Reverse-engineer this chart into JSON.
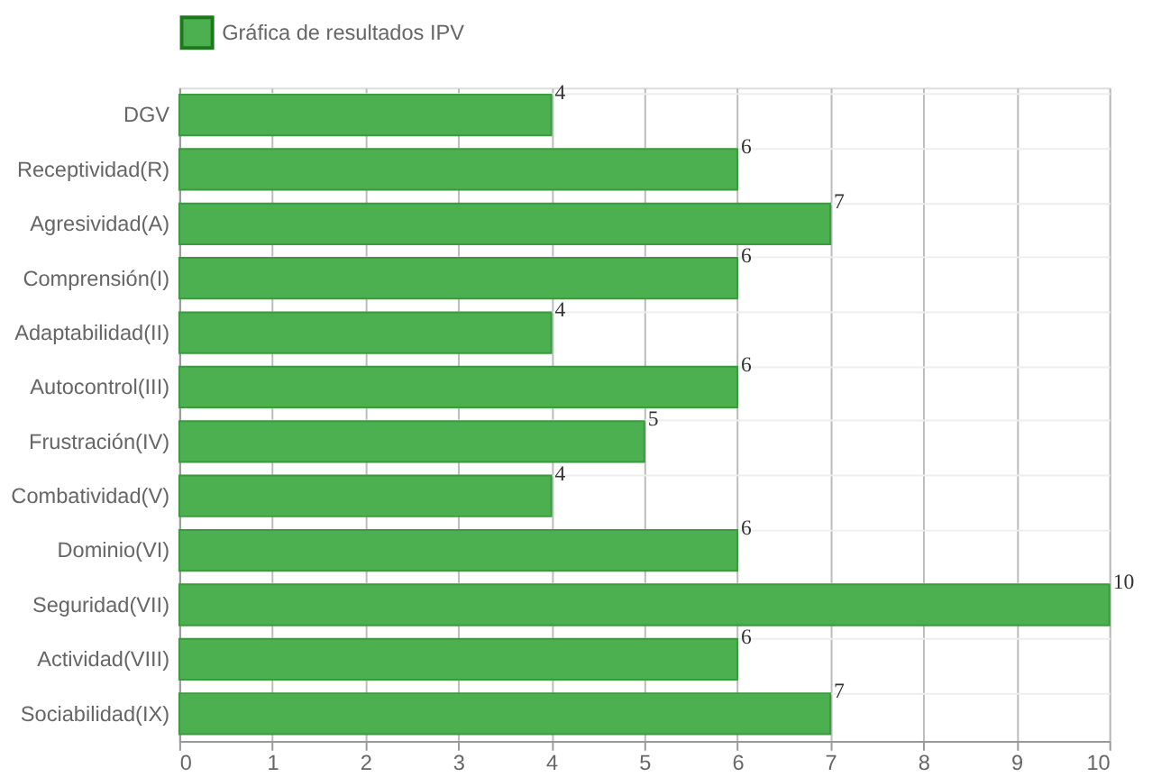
{
  "chart_data": {
    "type": "bar",
    "orientation": "horizontal",
    "categories": [
      "DGV",
      "Receptividad(R)",
      "Agresividad(A)",
      "Comprensión(I)",
      "Adaptabilidad(II)",
      "Autocontrol(III)",
      "Frustración(IV)",
      "Combatividad(V)",
      "Dominio(VI)",
      "Seguridad(VII)",
      "Actividad(VIII)",
      "Sociabilidad(IX)"
    ],
    "series": [
      {
        "name": "Gráfica de resultados IPV",
        "color": "#4caf50",
        "values": [
          4,
          6,
          7,
          6,
          4,
          6,
          5,
          4,
          6,
          10,
          6,
          7
        ]
      }
    ],
    "xlim": [
      0,
      10
    ],
    "xticks": [
      0,
      1,
      2,
      3,
      4,
      5,
      6,
      7,
      8,
      9,
      10
    ],
    "grid": true,
    "legend": "top",
    "data_labels": true
  }
}
